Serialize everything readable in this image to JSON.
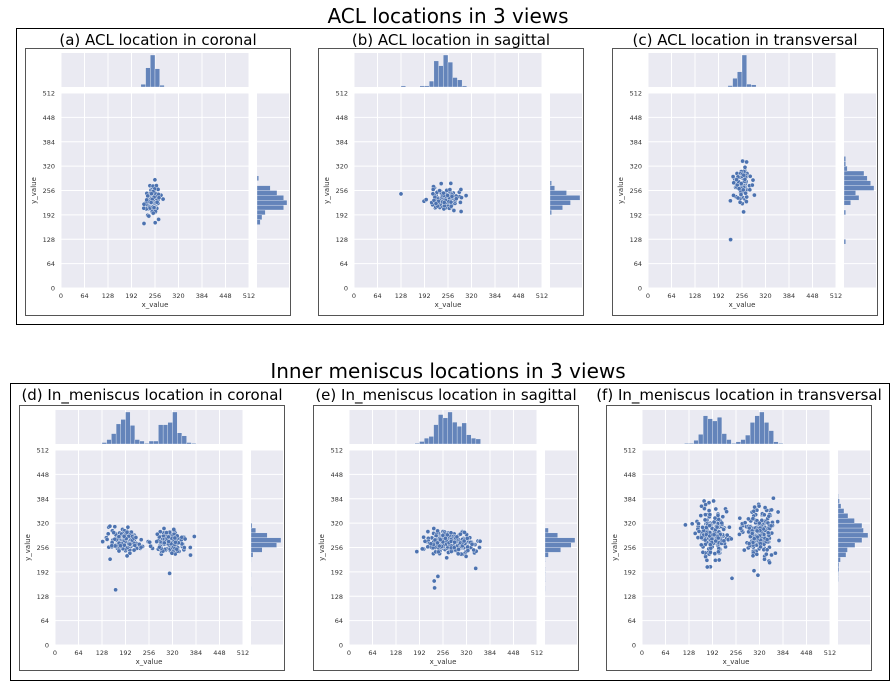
{
  "groups": [
    {
      "title": "ACL locations in 3 views"
    },
    {
      "title": "Inner meniscus locations in 3 views"
    }
  ],
  "colors": {
    "point": "#4c72b0",
    "plot_bg": "#eaeaf2",
    "grid": "#ffffff"
  },
  "chart_data": [
    {
      "type": "scatter",
      "title": "(a) ACL location in coronal",
      "xlabel": "x_value",
      "ylabel": "y_value",
      "xlim": [
        0,
        512
      ],
      "ylim": [
        0,
        512
      ],
      "xticks": [
        0,
        64,
        128,
        192,
        256,
        320,
        384,
        448,
        512
      ],
      "yticks": [
        0,
        64,
        128,
        192,
        256,
        320,
        384,
        448,
        512
      ],
      "clusters": [
        {
          "cx": 250,
          "cy": 230,
          "sx": 12,
          "sy": 22,
          "n": 80
        }
      ],
      "outliers": [
        [
          226,
          220
        ]
      ]
    },
    {
      "type": "scatter",
      "title": "(b) ACL location in sagittal",
      "xlabel": "x_value",
      "ylabel": "y_value",
      "xlim": [
        0,
        512
      ],
      "ylim": [
        0,
        512
      ],
      "xticks": [
        0,
        64,
        128,
        192,
        256,
        320,
        384,
        448,
        512
      ],
      "yticks": [
        0,
        64,
        128,
        192,
        256,
        320,
        384,
        448,
        512
      ],
      "clusters": [
        {
          "cx": 248,
          "cy": 232,
          "sx": 24,
          "sy": 16,
          "n": 110
        }
      ],
      "outliers": [
        [
          128,
          247
        ]
      ]
    },
    {
      "type": "scatter",
      "title": "(c) ACL location in transversal",
      "xlabel": "x_value",
      "ylabel": "y_value",
      "xlim": [
        0,
        512
      ],
      "ylim": [
        0,
        512
      ],
      "xticks": [
        0,
        64,
        128,
        192,
        256,
        320,
        384,
        448,
        512
      ],
      "yticks": [
        0,
        64,
        128,
        192,
        256,
        320,
        384,
        448,
        512
      ],
      "clusters": [
        {
          "cx": 255,
          "cy": 268,
          "sx": 12,
          "sy": 24,
          "n": 85
        }
      ],
      "outliers": [
        [
          225,
          127
        ]
      ]
    },
    {
      "type": "scatter",
      "title": "(d) In_meniscus location in coronal",
      "xlabel": "x_value",
      "ylabel": "y_value",
      "xlim": [
        0,
        512
      ],
      "ylim": [
        0,
        512
      ],
      "xticks": [
        0,
        64,
        128,
        192,
        256,
        320,
        384,
        448,
        512
      ],
      "yticks": [
        0,
        64,
        128,
        192,
        256,
        320,
        384,
        448,
        512
      ],
      "clusters": [
        {
          "cx": 190,
          "cy": 272,
          "sx": 22,
          "sy": 15,
          "n": 160
        },
        {
          "cx": 315,
          "cy": 272,
          "sx": 22,
          "sy": 15,
          "n": 160
        }
      ],
      "outliers": [
        [
          165,
          145
        ],
        [
          312,
          188
        ]
      ]
    },
    {
      "type": "scatter",
      "title": "(e) In_meniscus location in sagittal",
      "xlabel": "x_value",
      "ylabel": "y_value",
      "xlim": [
        0,
        512
      ],
      "ylim": [
        0,
        512
      ],
      "xticks": [
        0,
        64,
        128,
        192,
        256,
        320,
        384,
        448,
        512
      ],
      "yticks": [
        0,
        64,
        128,
        192,
        256,
        320,
        384,
        448,
        512
      ],
      "clusters": [
        {
          "cx": 278,
          "cy": 268,
          "sx": 35,
          "sy": 15,
          "n": 240
        }
      ],
      "outliers": [
        [
          233,
          150
        ],
        [
          232,
          168
        ],
        [
          242,
          180
        ]
      ]
    },
    {
      "type": "scatter",
      "title": "(f) In_meniscus location in transversal",
      "xlabel": "x_value",
      "ylabel": "y_value",
      "xlim": [
        0,
        512
      ],
      "ylim": [
        0,
        512
      ],
      "xticks": [
        0,
        64,
        128,
        192,
        256,
        320,
        384,
        448,
        512
      ],
      "yticks": [
        0,
        64,
        128,
        192,
        256,
        320,
        384,
        448,
        512
      ],
      "clusters": [
        {
          "cx": 190,
          "cy": 295,
          "sx": 22,
          "sy": 32,
          "n": 180
        },
        {
          "cx": 320,
          "cy": 295,
          "sx": 22,
          "sy": 32,
          "n": 180
        }
      ],
      "outliers": [
        [
          245,
          175
        ],
        [
          305,
          195
        ]
      ]
    }
  ]
}
